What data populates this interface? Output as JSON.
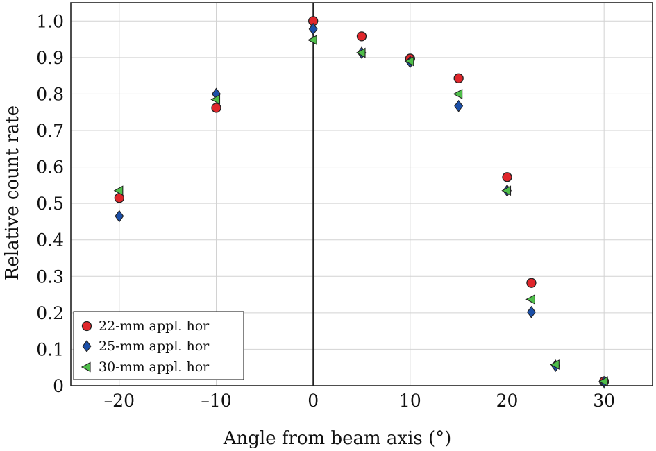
{
  "chart_data": {
    "type": "scatter",
    "title": "",
    "xlabel": "Angle from beam axis (°)",
    "ylabel": "Relative count rate",
    "xlim": [
      -25,
      35
    ],
    "ylim": [
      0,
      1.05
    ],
    "xticks": [
      -20,
      -10,
      0,
      10,
      20,
      30
    ],
    "xtick_labels": [
      "–20",
      "–10",
      "0",
      "10",
      "20",
      "30"
    ],
    "yticks": [
      0,
      0.1,
      0.2,
      0.3,
      0.4,
      0.5,
      0.6,
      0.7,
      0.8,
      0.9,
      1.0
    ],
    "ytick_labels": [
      "0",
      "0.1",
      "0.2",
      "0.3",
      "0.4",
      "0.5",
      "0.6",
      "0.7",
      "0.8",
      "0.9",
      "1.0"
    ],
    "grid": true,
    "reference_line_x": 0,
    "legend_position": "bottom-left",
    "series": [
      {
        "name": "22-mm appl. hor",
        "marker": "circle",
        "color": "#e0262b",
        "x": [
          -20,
          -10,
          0,
          5,
          10,
          15,
          20,
          22.5,
          30
        ],
        "y": [
          0.515,
          0.762,
          1.0,
          0.958,
          0.897,
          0.843,
          0.572,
          0.282,
          0.012
        ]
      },
      {
        "name": "25-mm appl. hor",
        "marker": "diamond",
        "color": "#1b4fa8",
        "x": [
          -20,
          -10,
          0,
          5,
          10,
          15,
          20,
          22.5,
          25,
          30
        ],
        "y": [
          0.465,
          0.8,
          0.978,
          0.913,
          0.888,
          0.767,
          0.535,
          0.202,
          0.055,
          0.01
        ]
      },
      {
        "name": "30-mm appl. hor",
        "marker": "triangle-left",
        "color": "#4fbe4a",
        "x": [
          -20,
          -10,
          0,
          5,
          10,
          15,
          20,
          22.5,
          25,
          30
        ],
        "y": [
          0.535,
          0.785,
          0.948,
          0.913,
          0.89,
          0.8,
          0.535,
          0.237,
          0.058,
          0.012
        ]
      }
    ]
  }
}
